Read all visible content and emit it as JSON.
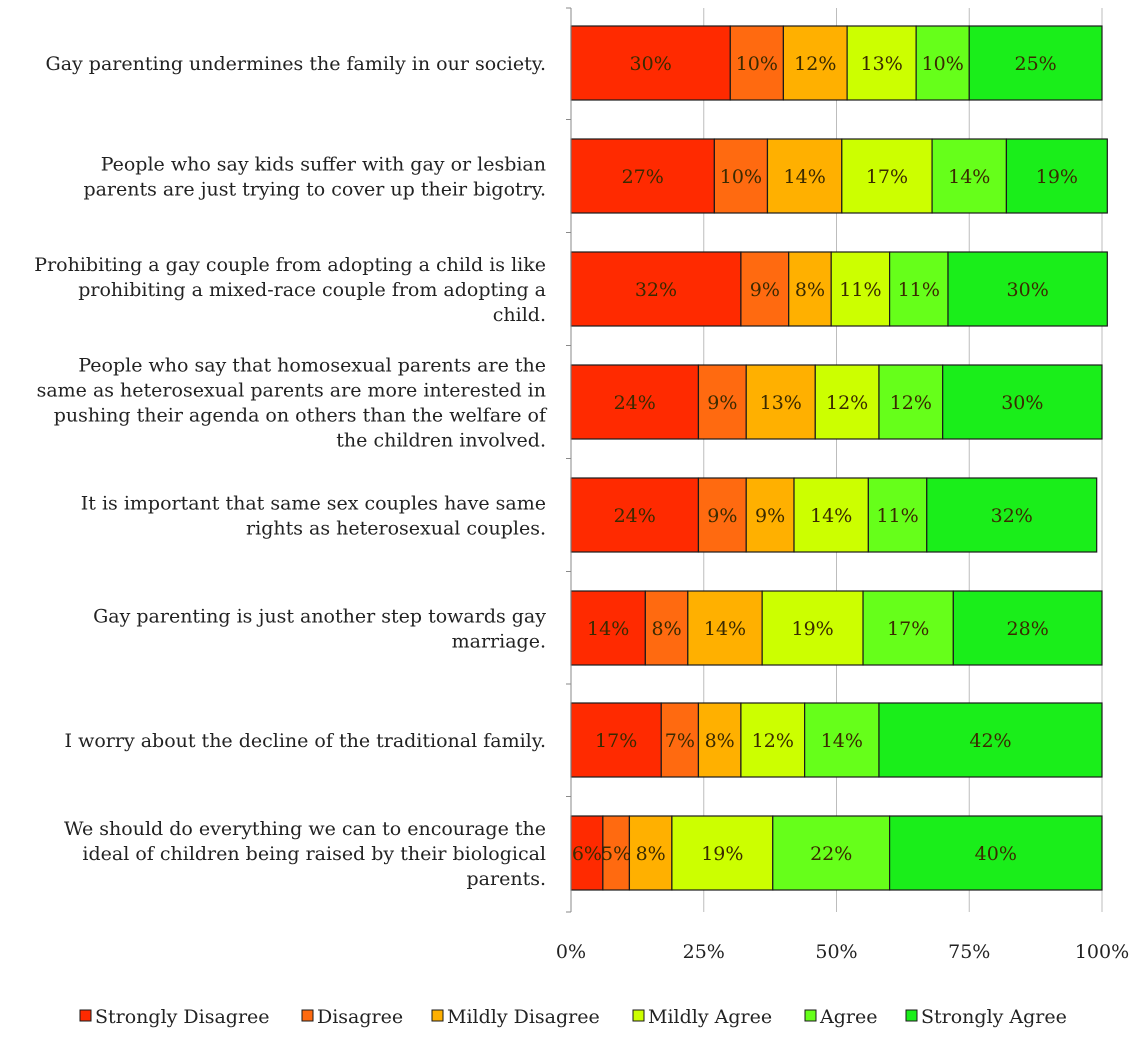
{
  "chart_data": {
    "type": "bar",
    "orientation": "horizontal",
    "stacked": true,
    "percent_stacked": true,
    "categories": [
      "Gay parenting undermines the family in our society.",
      "People who say kids suffer with gay or lesbian parents are just trying to cover up their bigotry.",
      "Prohibiting a gay couple from adopting a child is like prohibiting a mixed-race couple from adopting a child.",
      "People who say that homosexual parents are the same as heterosexual parents are more interested in pushing their agenda on others than the welfare of the children involved.",
      "It is important that same sex couples have same rights as heterosexual couples.",
      "Gay parenting is just another step towards gay marriage.",
      "I worry about the decline of the traditional family.",
      "We should do everything we can to encourage the ideal of children being raised by their biological parents."
    ],
    "category_lines": [
      [
        "Gay parenting undermines the family in our society."
      ],
      [
        "People who say kids suffer with gay or lesbian",
        "parents are just trying to cover up their bigotry."
      ],
      [
        "Prohibiting a gay couple from adopting a child is like",
        "prohibiting a mixed-race couple from adopting a",
        "child."
      ],
      [
        "People who say that homosexual parents are the",
        "same as heterosexual parents are more interested in",
        "pushing their agenda on others than the welfare of",
        "the children involved."
      ],
      [
        "It is important that same sex couples have same",
        "rights as heterosexual couples."
      ],
      [
        "Gay parenting is just another step towards gay",
        "marriage."
      ],
      [
        "I worry about the decline of the traditional family."
      ],
      [
        "We should do everything we can to encourage the",
        "ideal of children being raised by their biological",
        "parents."
      ]
    ],
    "series": [
      {
        "name": "Strongly Disagree",
        "color": "#ff2a00",
        "values": [
          30,
          27,
          32,
          24,
          24,
          14,
          17,
          6
        ]
      },
      {
        "name": "Disagree",
        "color": "#ff6a10",
        "values": [
          10,
          10,
          9,
          9,
          9,
          8,
          7,
          5
        ]
      },
      {
        "name": "Mildly Disagree",
        "color": "#ffb000",
        "values": [
          12,
          14,
          8,
          13,
          9,
          14,
          8,
          8
        ]
      },
      {
        "name": "Mildly Agree",
        "color": "#ccff00",
        "values": [
          13,
          17,
          11,
          12,
          14,
          19,
          12,
          19
        ]
      },
      {
        "name": "Agree",
        "color": "#66ff1a",
        "values": [
          10,
          14,
          11,
          12,
          11,
          17,
          14,
          22
        ]
      },
      {
        "name": "Strongly Agree",
        "color": "#1aee1a",
        "values": [
          25,
          19,
          30,
          30,
          32,
          28,
          42,
          40
        ]
      }
    ],
    "xticks": [
      "0%",
      "25%",
      "50%",
      "75%",
      "100%"
    ],
    "xlim": [
      0,
      100
    ],
    "grid": true,
    "legend_position": "bottom"
  }
}
